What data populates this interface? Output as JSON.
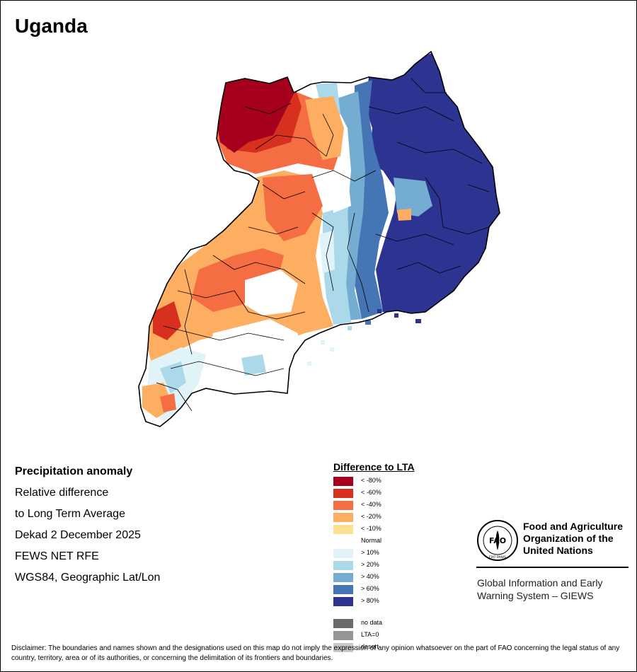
{
  "map": {
    "title": "Uganda",
    "colors": {
      "lt_m80": "#a5001d",
      "lt_m60": "#d7301f",
      "lt_m40": "#f46d43",
      "lt_m20": "#fdae61",
      "lt_m10": "#fee090",
      "normal": "#ffffff",
      "gt_10": "#e0f3f8",
      "gt_20": "#abd9e9",
      "gt_40": "#74add1",
      "gt_60": "#4575b4",
      "gt_80": "#2c3390"
    }
  },
  "info": {
    "heading": "Precipitation anomaly",
    "line1": "Relative difference",
    "line2": "to Long Term Average",
    "period": "Dekad 2 December 2025",
    "source": "FEWS NET RFE",
    "projection": "WGS84, Geographic Lat/Lon"
  },
  "legend": {
    "title": "Difference to LTA",
    "items": [
      {
        "label": "< -80%",
        "color": "#a5001d"
      },
      {
        "label": "< -60%",
        "color": "#d7301f"
      },
      {
        "label": "< -40%",
        "color": "#f46d43"
      },
      {
        "label": "< -20%",
        "color": "#fdae61"
      },
      {
        "label": "< -10%",
        "color": "#fee090"
      },
      {
        "label": "Normal",
        "color": "#ffffff"
      },
      {
        "label": "> 10%",
        "color": "#e0f3f8"
      },
      {
        "label": "> 20%",
        "color": "#abd9e9"
      },
      {
        "label": "> 40%",
        "color": "#74add1"
      },
      {
        "label": "> 60%",
        "color": "#4575b4"
      },
      {
        "label": "> 80%",
        "color": "#2c3390"
      }
    ],
    "extra": [
      {
        "label": "no data",
        "color": "#6b6b6b"
      },
      {
        "label": "LTA=0",
        "color": "#969696"
      },
      {
        "label": "desert",
        "color": "#c8c8c8"
      }
    ]
  },
  "fao": {
    "name_line1": "Food and Agriculture",
    "name_line2": "Organization of the",
    "name_line3": "United Nations",
    "logo_text": "FAO",
    "logo_motto": "FIAT PANIS",
    "giews_line1": "Global Information and Early",
    "giews_line2": "Warning System – GIEWS"
  },
  "disclaimer": "Disclaimer: The boundaries and names shown and the designations used on this map do not imply the expression of any opinion whatsoever on the part of FAO concerning the legal status of any country, territory, area or of its authorities, or concerning the delimitation of its frontiers and boundaries."
}
